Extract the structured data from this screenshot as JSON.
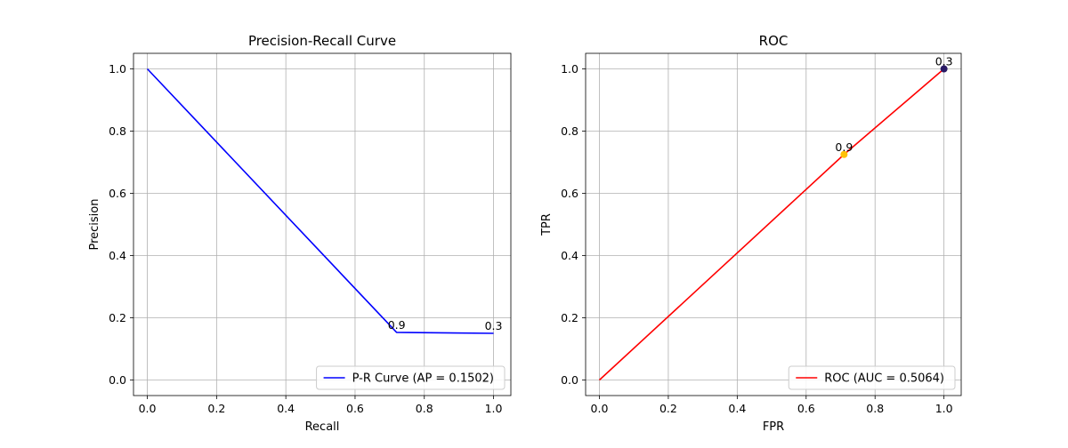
{
  "chart_data": [
    {
      "type": "line",
      "title": "Precision-Recall Curve",
      "xlabel": "Recall",
      "ylabel": "Precision",
      "xlim": [
        -0.04,
        1.05
      ],
      "ylim": [
        -0.05,
        1.05
      ],
      "xticks": [
        0.0,
        0.2,
        0.4,
        0.6,
        0.8,
        1.0
      ],
      "yticks": [
        0.0,
        0.2,
        0.4,
        0.6,
        0.8,
        1.0
      ],
      "tick_labels_x": [
        "0.0",
        "0.2",
        "0.4",
        "0.6",
        "0.8",
        "1.0"
      ],
      "tick_labels_y": [
        "0.0",
        "0.2",
        "0.4",
        "0.6",
        "0.8",
        "1.0"
      ],
      "grid": true,
      "legend_position": "lower-right",
      "series": [
        {
          "name": "P-R Curve (AP = 0.1502)",
          "color": "#0000ff",
          "x": [
            0.0,
            0.72,
            1.0
          ],
          "y": [
            1.0,
            0.153,
            0.15
          ]
        }
      ],
      "markers": [],
      "annotations": [
        {
          "text": "0.9",
          "x": 0.72,
          "y": 0.153
        },
        {
          "text": "0.3",
          "x": 1.0,
          "y": 0.15
        }
      ]
    },
    {
      "type": "line",
      "title": "ROC",
      "xlabel": "FPR",
      "ylabel": "TPR",
      "xlim": [
        -0.04,
        1.05
      ],
      "ylim": [
        -0.05,
        1.05
      ],
      "xticks": [
        0.0,
        0.2,
        0.4,
        0.6,
        0.8,
        1.0
      ],
      "yticks": [
        0.0,
        0.2,
        0.4,
        0.6,
        0.8,
        1.0
      ],
      "tick_labels_x": [
        "0.0",
        "0.2",
        "0.4",
        "0.6",
        "0.8",
        "1.0"
      ],
      "tick_labels_y": [
        "0.0",
        "0.2",
        "0.4",
        "0.6",
        "0.8",
        "1.0"
      ],
      "grid": true,
      "legend_position": "lower-right",
      "series": [
        {
          "name": "ROC (AUC = 0.5064)",
          "color": "#ff0000",
          "x": [
            0.0,
            0.71,
            1.0
          ],
          "y": [
            0.0,
            0.725,
            1.0
          ]
        }
      ],
      "markers": [
        {
          "x": 0.71,
          "y": 0.725,
          "color": "#ffc107"
        },
        {
          "x": 1.0,
          "y": 1.0,
          "color": "#2a1a66"
        }
      ],
      "annotations": [
        {
          "text": "0.9",
          "x": 0.71,
          "y": 0.725
        },
        {
          "text": "0.3",
          "x": 1.0,
          "y": 1.0
        }
      ]
    }
  ]
}
